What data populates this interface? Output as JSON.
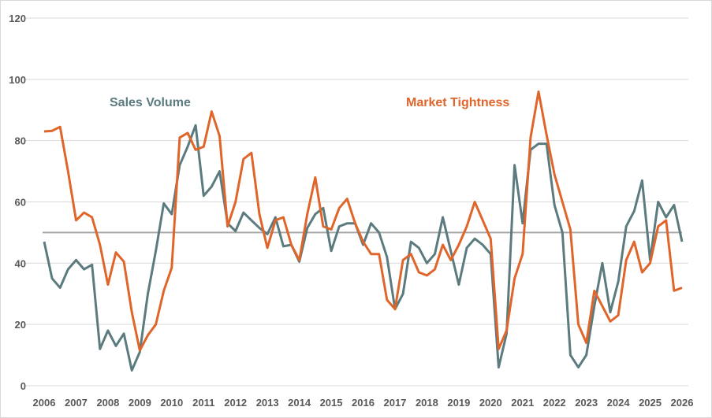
{
  "chart_data": {
    "type": "line",
    "title": "",
    "xlabel": "",
    "ylabel": "",
    "xlim": [
      2006,
      2026
    ],
    "ylim": [
      0,
      120
    ],
    "yticks": [
      0,
      20,
      40,
      60,
      80,
      100,
      120
    ],
    "xticks": [
      2006,
      2007,
      2008,
      2009,
      2010,
      2011,
      2012,
      2013,
      2014,
      2015,
      2016,
      2017,
      2018,
      2019,
      2020,
      2021,
      2022,
      2023,
      2024,
      2025,
      2026
    ],
    "grid": true,
    "reference_line": 50,
    "legend": "inline labels",
    "x_step": 0.25,
    "x_start": 2006,
    "series": [
      {
        "name": "Sales Volume",
        "color": "#5b7b7f",
        "values": [
          47,
          35,
          32,
          38,
          41,
          38,
          39.5,
          12,
          18,
          13,
          17,
          5,
          11,
          30,
          44,
          59.5,
          56,
          72,
          78,
          85,
          62,
          65,
          70,
          53,
          50.5,
          56.5,
          54,
          51.5,
          49.5,
          55,
          45.5,
          46,
          40.5,
          51.5,
          56,
          58,
          44,
          52,
          53,
          53,
          46,
          53,
          50,
          42,
          25,
          30,
          47,
          45,
          40,
          43,
          55,
          44,
          33,
          45,
          48,
          46,
          43,
          6,
          17,
          72,
          53,
          77,
          79,
          79,
          59,
          50,
          10,
          6,
          10,
          26,
          40,
          24,
          34,
          52,
          57,
          67,
          41,
          60,
          55,
          59,
          47
        ]
      },
      {
        "name": "Market Tightness",
        "color": "#e0652a",
        "values": [
          83,
          83.2,
          84.5,
          70,
          54,
          56.5,
          55,
          46,
          33,
          43.5,
          40.5,
          24,
          11.5,
          16.5,
          20,
          31,
          38.5,
          81,
          82.5,
          77,
          78,
          89.5,
          81.5,
          52,
          60,
          74,
          76,
          56,
          45,
          54,
          55,
          46,
          41,
          56,
          68,
          52,
          51,
          58,
          61,
          53,
          47,
          43,
          43,
          28,
          25,
          41,
          43,
          37,
          36,
          38,
          46,
          41,
          46,
          52,
          60,
          54,
          48,
          12,
          18,
          35,
          43,
          81,
          96,
          82,
          69,
          60,
          51,
          20,
          14,
          31,
          26,
          21,
          23,
          41,
          47,
          37,
          40,
          52,
          54,
          31,
          32
        ]
      }
    ],
    "reference_color": "#a6a6a6",
    "grid_color": "#d9d9d9"
  }
}
